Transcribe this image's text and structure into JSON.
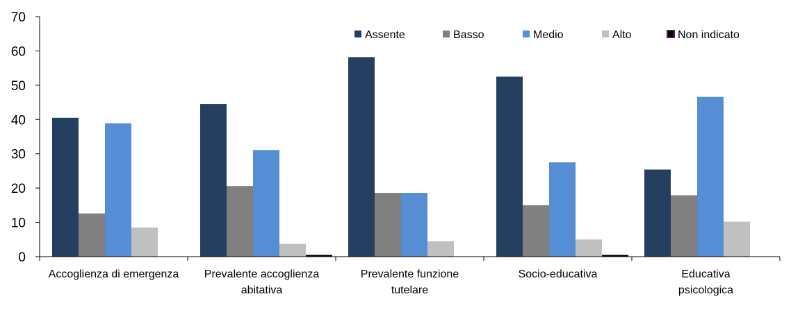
{
  "chart_data": {
    "type": "bar",
    "title": "",
    "xlabel": "",
    "ylabel": "",
    "ylim": [
      0,
      70
    ],
    "yticks": [
      0,
      10,
      20,
      30,
      40,
      50,
      60,
      70
    ],
    "grid": false,
    "legend_position": "top-right",
    "categories": [
      [
        "Accoglienza di emergenza"
      ],
      [
        "Prevalente accoglienza",
        "abitativa"
      ],
      [
        "Prevalente funzione",
        "tutelare"
      ],
      [
        "Socio-educativa"
      ],
      [
        "Educativa",
        "psicologica"
      ]
    ],
    "series": [
      {
        "name": "Assente",
        "color": "#243f60",
        "values": [
          40.5,
          44.5,
          58.2,
          52.5,
          25.4
        ]
      },
      {
        "name": "Basso",
        "color": "#808080",
        "values": [
          12.6,
          20.6,
          18.6,
          15.0,
          17.9
        ]
      },
      {
        "name": "Medio",
        "color": "#558ed5",
        "values": [
          38.9,
          31.1,
          18.6,
          27.5,
          46.6
        ]
      },
      {
        "name": "Alto",
        "color": "#c0c0c0",
        "values": [
          8.5,
          3.7,
          4.5,
          5.0,
          10.2
        ]
      },
      {
        "name": "Non indicato",
        "color": "#000000",
        "values": [
          0.0,
          0.5,
          0.0,
          0.5,
          0.0
        ]
      }
    ]
  }
}
